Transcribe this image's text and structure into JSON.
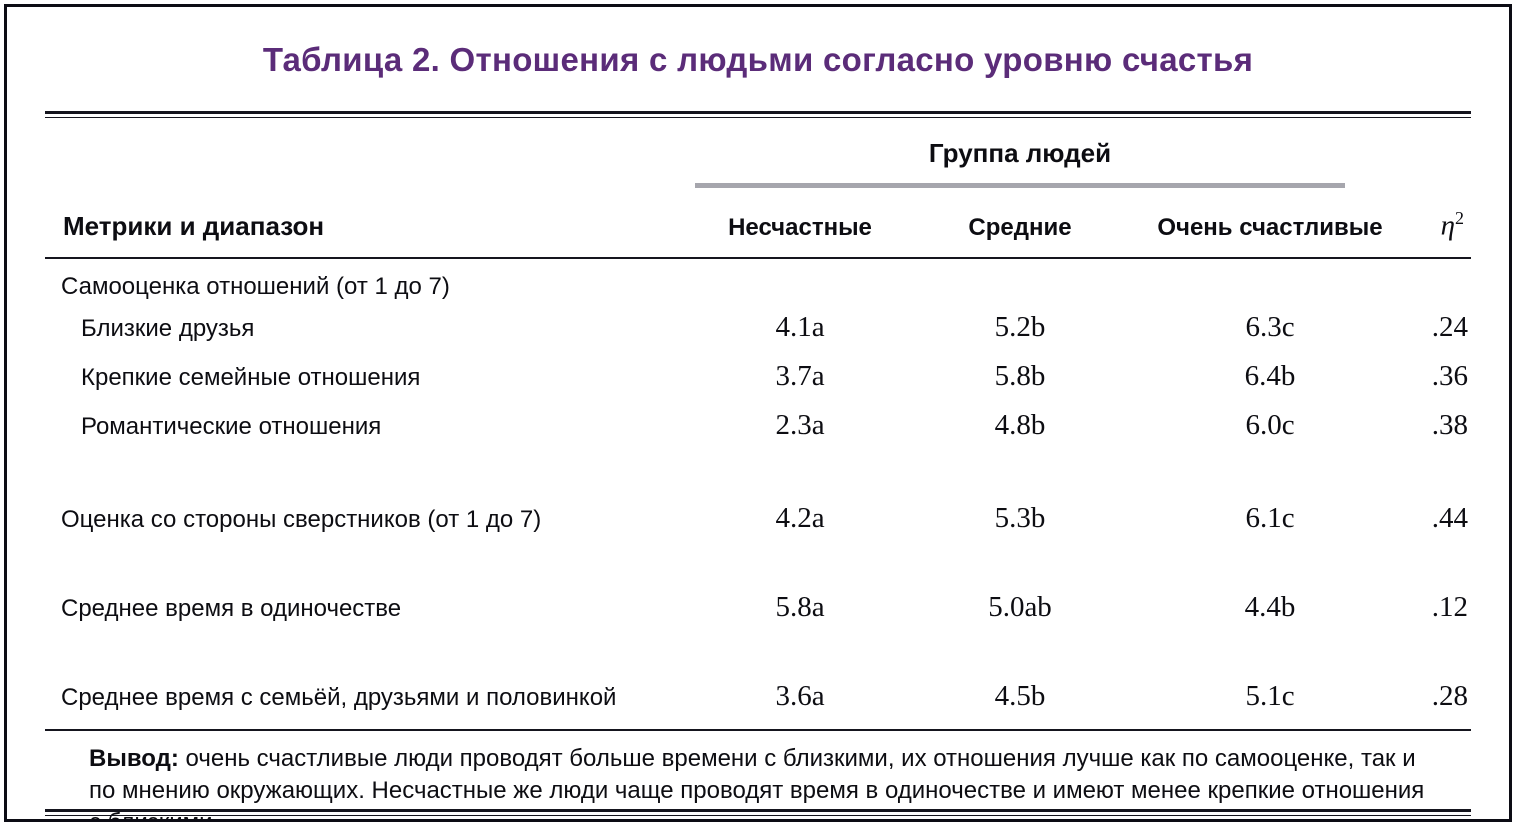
{
  "chart_data": {
    "type": "table",
    "title": "Таблица 2. Отношения с людьми согласно уровню счастья",
    "group_header": "Группа людей",
    "row_header": "Метрики и диапазон",
    "eta_column": "η²",
    "eta_symbol": "η",
    "eta_sup": "2",
    "columns": [
      "Несчастные",
      "Средние",
      "Очень счастливые"
    ],
    "rows": [
      {
        "label": "Самооценка отношений (от 1 до 7)",
        "section": true,
        "values": [
          "",
          "",
          "",
          ""
        ]
      },
      {
        "label": "Близкие друзья",
        "indent": true,
        "values": [
          "4.1a",
          "5.2b",
          "6.3c",
          ".24"
        ]
      },
      {
        "label": "Крепкие семейные отношения",
        "indent": true,
        "values": [
          "3.7a",
          "5.8b",
          "6.4b",
          ".36"
        ]
      },
      {
        "label": "Романтические отношения",
        "indent": true,
        "values": [
          "2.3a",
          "4.8b",
          "6.0c",
          ".38"
        ]
      },
      {
        "label": "Оценка со стороны сверстников (от 1 до 7)",
        "values": [
          "4.2a",
          "5.3b",
          "6.1c",
          ".44"
        ]
      },
      {
        "label": "Среднее время в одиночестве",
        "values": [
          "5.8a",
          "5.0ab",
          "4.4b",
          ".12"
        ]
      },
      {
        "label": "Среднее время с семьёй, друзьями и половинкой",
        "values": [
          "3.6a",
          "4.5b",
          "5.1c",
          ".28"
        ]
      }
    ],
    "note": {
      "label": "Вывод:",
      "text": "очень счастливые люди проводят больше времени с близкими, их отношения лучше как по самооценке, так и по мнению окружающих. Несчастные же люди чаще проводят время в одиночестве и имеют менее крепкие отношения с близкими."
    }
  },
  "colors": {
    "title_purple": "#5b2c79",
    "spanner_gray": "#a6a6ad",
    "rule_color": "#15151e"
  }
}
